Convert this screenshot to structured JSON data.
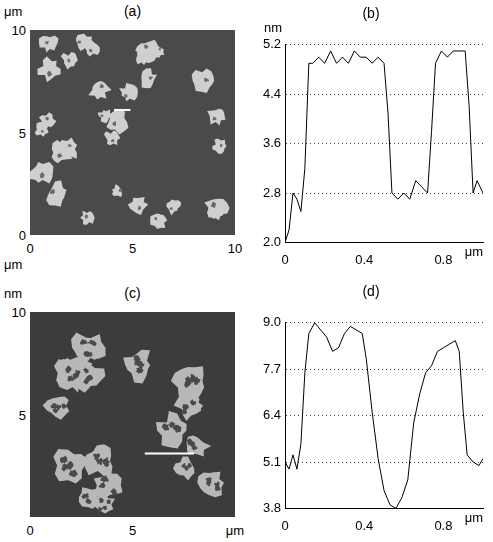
{
  "images": [
    {
      "title": "(a)",
      "xlabel": "μm",
      "ylabel": "μm",
      "xlim": [
        0,
        10
      ],
      "ylim": [
        0,
        10
      ],
      "xticks": [
        0,
        5,
        10
      ],
      "yticks": [
        0,
        5,
        10
      ]
    },
    {
      "title": "(c)",
      "xlabel": "μm",
      "ylabel": "nm",
      "xlim": [
        0,
        10
      ],
      "ylim": [
        0,
        10
      ],
      "xticks": [
        0,
        5
      ],
      "yticks": [
        5,
        10
      ]
    }
  ],
  "chart_data": [
    {
      "title": "(b)",
      "type": "line",
      "xlabel": "μm",
      "ylabel": "nm",
      "color": "#000000",
      "grid": true,
      "x": [
        0,
        0.02,
        0.04,
        0.06,
        0.08,
        0.1,
        0.12,
        0.14,
        0.17,
        0.2,
        0.23,
        0.26,
        0.29,
        0.32,
        0.35,
        0.38,
        0.41,
        0.44,
        0.47,
        0.5,
        0.52,
        0.54,
        0.57,
        0.6,
        0.63,
        0.66,
        0.69,
        0.72,
        0.74,
        0.76,
        0.79,
        0.82,
        0.85,
        0.88,
        0.91,
        0.93,
        0.95,
        0.97,
        1.0
      ],
      "values": [
        2.0,
        2.2,
        2.8,
        2.7,
        2.5,
        3.2,
        4.9,
        4.9,
        5.0,
        4.9,
        5.1,
        4.9,
        5.0,
        4.9,
        5.1,
        5.0,
        5.0,
        4.9,
        5.0,
        4.9,
        4.1,
        2.8,
        2.7,
        2.8,
        2.7,
        3.0,
        2.9,
        2.8,
        3.8,
        4.9,
        5.1,
        5.0,
        5.1,
        5.1,
        5.1,
        4.2,
        2.8,
        3.0,
        2.8
      ],
      "xlim": [
        0,
        1.0
      ],
      "ylim": [
        2.0,
        5.2
      ],
      "xticks": [
        0,
        0.4,
        0.8
      ],
      "yticks": [
        {
          "value": 2,
          "label": "2.0"
        },
        2.8,
        3.6,
        4.4,
        5.2
      ]
    },
    {
      "title": "(d)",
      "type": "line",
      "xlabel": "μm",
      "color": "#000000",
      "grid": true,
      "x": [
        0,
        0.02,
        0.04,
        0.06,
        0.08,
        0.1,
        0.12,
        0.15,
        0.18,
        0.21,
        0.24,
        0.27,
        0.3,
        0.33,
        0.36,
        0.39,
        0.41,
        0.44,
        0.47,
        0.5,
        0.53,
        0.56,
        0.59,
        0.62,
        0.65,
        0.68,
        0.71,
        0.74,
        0.77,
        0.8,
        0.83,
        0.86,
        0.88,
        0.9,
        0.92,
        0.95,
        0.98,
        1.0
      ],
      "values": [
        5.1,
        4.9,
        5.3,
        4.9,
        5.6,
        7.6,
        8.7,
        9.0,
        8.8,
        8.6,
        8.2,
        8.3,
        8.7,
        8.9,
        8.8,
        8.7,
        8.0,
        6.5,
        5.2,
        4.3,
        3.9,
        3.8,
        4.1,
        4.6,
        6.2,
        7.0,
        7.6,
        7.8,
        8.2,
        8.3,
        8.4,
        8.5,
        8.2,
        6.5,
        5.3,
        5.1,
        5.0,
        5.2
      ],
      "xlim": [
        0,
        1.0
      ],
      "ylim": [
        3.8,
        9.0
      ],
      "xticks": [
        0,
        0.4,
        0.8
      ],
      "yticks": [
        3.8,
        5.1,
        6.4,
        7.7,
        {
          "value": 9,
          "label": "9.0"
        }
      ]
    }
  ]
}
